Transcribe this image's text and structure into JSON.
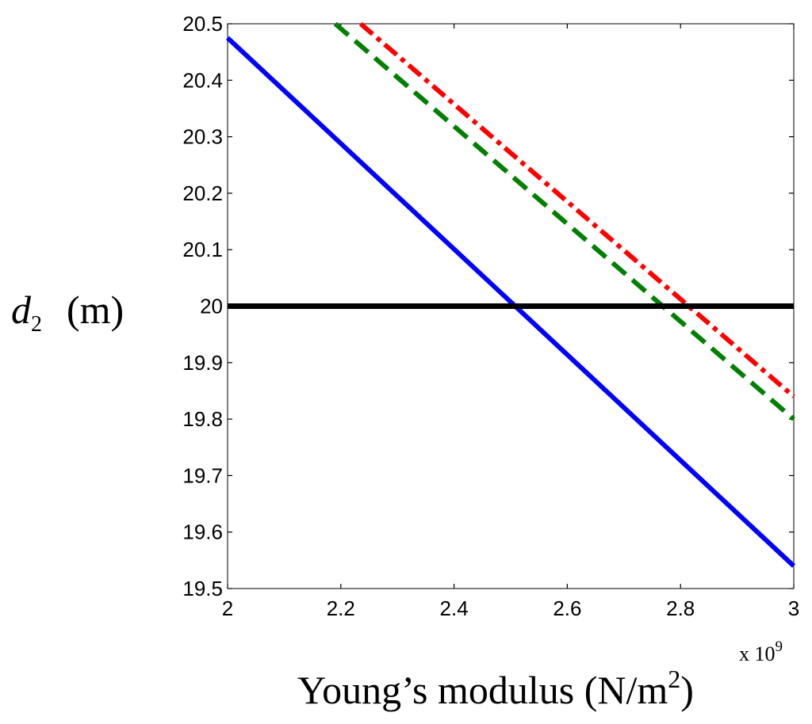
{
  "chart_data": {
    "type": "line",
    "title": "",
    "xlabel_text": "Young’s modulus (N/m",
    "xlabel_sup": "2",
    "xlabel_close": ")",
    "ylabel_var": "d",
    "ylabel_sub": "2",
    "ylabel_unit": "(m)",
    "x_scale_text": "x 10",
    "x_scale_exp": "9",
    "xlim": [
      2,
      3
    ],
    "ylim": [
      19.5,
      20.5
    ],
    "x_ticks": [
      2,
      2.2,
      2.4,
      2.6,
      2.8,
      3
    ],
    "x_tick_labels": [
      "2",
      "2.2",
      "2.4",
      "2.6",
      "2.8",
      "3"
    ],
    "y_ticks": [
      19.5,
      19.6,
      19.7,
      19.8,
      19.9,
      20,
      20.1,
      20.2,
      20.3,
      20.4,
      20.5
    ],
    "y_tick_labels": [
      "19.5",
      "19.6",
      "19.7",
      "19.8",
      "19.9",
      "20",
      "20.1",
      "20.2",
      "20.3",
      "20.4",
      "20.5"
    ],
    "grid": false,
    "series": [
      {
        "name": "blue-solid",
        "color": "#0000ff",
        "style": "solid",
        "x": [
          2.0,
          3.0
        ],
        "y": [
          20.475,
          19.54
        ]
      },
      {
        "name": "green-dashed",
        "color": "#008000",
        "style": "dashed",
        "x": [
          2.19,
          3.0
        ],
        "y": [
          20.5,
          19.8
        ]
      },
      {
        "name": "red-dashdot",
        "color": "#ff0000",
        "style": "dashdot",
        "x": [
          2.235,
          3.0
        ],
        "y": [
          20.5,
          19.84
        ]
      },
      {
        "name": "reference-20m",
        "color": "#000000",
        "style": "solid",
        "x": [
          2.0,
          3.0
        ],
        "y": [
          20.0,
          20.0
        ]
      }
    ]
  }
}
